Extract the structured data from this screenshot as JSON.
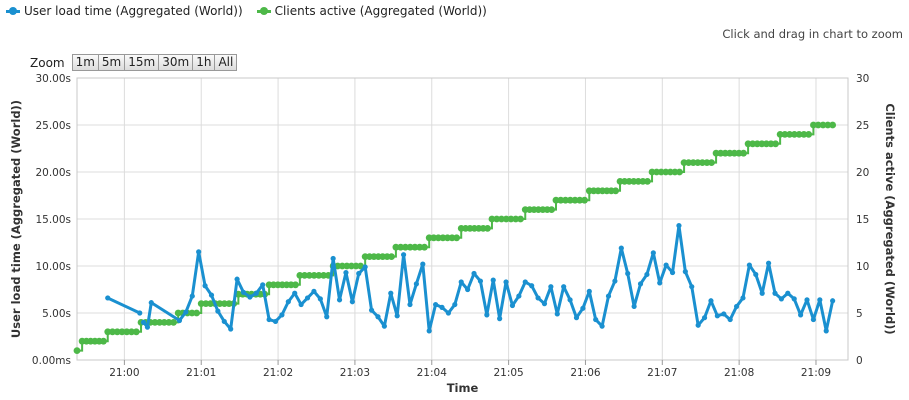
{
  "legend": {
    "items": [
      {
        "label": "User load time (Aggregated (World))",
        "color": "#1a90d0"
      },
      {
        "label": "Clients active (Aggregated (World))",
        "color": "#4db848"
      }
    ]
  },
  "zoom_hint": "Click and drag in chart to zoom",
  "zoom": {
    "label": "Zoom",
    "buttons": [
      "1m",
      "5m",
      "15m",
      "30m",
      "1h",
      "All"
    ]
  },
  "chart_data": {
    "type": "line",
    "xlabel": "Time",
    "ylabel_left": "User load time (Aggregated (World))",
    "ylabel_right": "Clients active (Aggregated (World))",
    "x_range": [
      "20:59:23",
      "21:09:25"
    ],
    "x_ticks": [
      "21:00",
      "21:01",
      "21:02",
      "21:03",
      "21:04",
      "21:05",
      "21:06",
      "21:07",
      "21:08",
      "21:09"
    ],
    "y_left_ticks": [
      "0.00ms",
      "5.00s",
      "10.00s",
      "15.00s",
      "20.00s",
      "25.00s",
      "30.00s"
    ],
    "y_left_range": [
      0,
      30
    ],
    "y_right_ticks": [
      "0",
      "5",
      "10",
      "15",
      "20",
      "25",
      "30"
    ],
    "y_right_range": [
      0,
      30
    ],
    "grid": true,
    "series": [
      {
        "name": "User load time (Aggregated (World))",
        "axis": "left",
        "color": "#1a90d0",
        "segments": [
          [
            [
              "20:59:47",
              6.6
            ],
            [
              "21:00:12",
              5.0
            ]
          ],
          [
            [
              "21:00:15",
              4.0
            ],
            [
              "21:00:18",
              3.5
            ],
            [
              "21:00:21",
              6.1
            ],
            [
              "21:00:43",
              4.2
            ],
            [
              "21:00:48",
              5.1
            ],
            [
              "21:00:53",
              6.8
            ],
            [
              "21:00:58",
              11.5
            ],
            [
              "21:01:03",
              7.9
            ],
            [
              "21:01:08",
              6.9
            ],
            [
              "21:01:13",
              5.2
            ],
            [
              "21:01:18",
              4.1
            ],
            [
              "21:01:23",
              3.3
            ],
            [
              "21:01:28",
              8.6
            ],
            [
              "21:01:33",
              7.2
            ],
            [
              "21:01:38",
              6.7
            ],
            [
              "21:01:43",
              7.1
            ],
            [
              "21:01:48",
              8.0
            ],
            [
              "21:01:53",
              4.3
            ],
            [
              "21:01:58",
              4.1
            ],
            [
              "21:02:03",
              4.8
            ],
            [
              "21:02:08",
              6.2
            ],
            [
              "21:02:13",
              7.1
            ],
            [
              "21:02:18",
              5.9
            ],
            [
              "21:02:23",
              6.6
            ],
            [
              "21:02:28",
              7.3
            ],
            [
              "21:02:33",
              6.5
            ],
            [
              "21:02:38",
              4.6
            ],
            [
              "21:02:43",
              10.8
            ],
            [
              "21:02:48",
              6.4
            ],
            [
              "21:02:53",
              9.3
            ],
            [
              "21:02:58",
              6.2
            ],
            [
              "21:03:03",
              9.2
            ],
            [
              "21:03:08",
              9.9
            ],
            [
              "21:03:13",
              5.3
            ],
            [
              "21:03:18",
              4.6
            ],
            [
              "21:03:23",
              3.6
            ],
            [
              "21:03:28",
              7.1
            ],
            [
              "21:03:33",
              4.7
            ],
            [
              "21:03:38",
              11.2
            ],
            [
              "21:03:43",
              5.9
            ],
            [
              "21:03:48",
              8.1
            ],
            [
              "21:03:53",
              10.2
            ],
            [
              "21:03:58",
              3.1
            ],
            [
              "21:04:03",
              5.9
            ],
            [
              "21:04:08",
              5.6
            ],
            [
              "21:04:13",
              5.0
            ],
            [
              "21:04:18",
              5.9
            ],
            [
              "21:04:23",
              8.3
            ],
            [
              "21:04:28",
              7.5
            ],
            [
              "21:04:33",
              9.2
            ],
            [
              "21:04:38",
              8.4
            ],
            [
              "21:04:43",
              4.8
            ],
            [
              "21:04:48",
              8.5
            ],
            [
              "21:04:53",
              4.4
            ],
            [
              "21:04:58",
              8.3
            ],
            [
              "21:05:03",
              5.8
            ],
            [
              "21:05:08",
              6.8
            ],
            [
              "21:05:13",
              8.3
            ],
            [
              "21:05:18",
              7.9
            ],
            [
              "21:05:23",
              6.6
            ],
            [
              "21:05:28",
              6.0
            ],
            [
              "21:05:33",
              7.8
            ],
            [
              "21:05:38",
              4.9
            ],
            [
              "21:05:43",
              7.8
            ],
            [
              "21:05:48",
              6.4
            ],
            [
              "21:05:53",
              4.5
            ],
            [
              "21:05:58",
              5.5
            ],
            [
              "21:06:03",
              7.3
            ],
            [
              "21:06:08",
              4.3
            ],
            [
              "21:06:13",
              3.6
            ],
            [
              "21:06:18",
              6.8
            ],
            [
              "21:06:23",
              8.4
            ],
            [
              "21:06:28",
              11.9
            ],
            [
              "21:06:33",
              9.2
            ],
            [
              "21:06:38",
              5.7
            ],
            [
              "21:06:43",
              8.1
            ],
            [
              "21:06:48",
              9.1
            ],
            [
              "21:06:53",
              11.4
            ],
            [
              "21:06:58",
              8.2
            ],
            [
              "21:07:03",
              10.1
            ],
            [
              "21:07:08",
              9.3
            ],
            [
              "21:07:13",
              14.3
            ],
            [
              "21:07:18",
              9.4
            ],
            [
              "21:07:23",
              7.8
            ],
            [
              "21:07:28",
              3.7
            ],
            [
              "21:07:33",
              4.5
            ],
            [
              "21:07:38",
              6.3
            ],
            [
              "21:07:43",
              4.7
            ],
            [
              "21:07:48",
              4.9
            ],
            [
              "21:07:53",
              4.3
            ],
            [
              "21:07:58",
              5.7
            ],
            [
              "21:08:03",
              6.6
            ],
            [
              "21:08:08",
              10.1
            ],
            [
              "21:08:13",
              9.1
            ],
            [
              "21:08:18",
              7.1
            ],
            [
              "21:08:23",
              10.3
            ],
            [
              "21:08:28",
              7.1
            ],
            [
              "21:08:33",
              6.5
            ],
            [
              "21:08:38",
              7.1
            ],
            [
              "21:08:43",
              6.5
            ],
            [
              "21:08:48",
              4.8
            ],
            [
              "21:08:53",
              6.4
            ],
            [
              "21:08:58",
              4.3
            ],
            [
              "21:09:03",
              6.4
            ],
            [
              "21:09:08",
              3.1
            ],
            [
              "21:09:13",
              6.3
            ]
          ]
        ]
      },
      {
        "name": "Clients active (Aggregated (World))",
        "axis": "right",
        "color": "#4db848",
        "steps": [
          [
            "20:59:23",
            1
          ],
          [
            "20:59:27",
            2
          ],
          [
            "20:59:47",
            3
          ],
          [
            "21:00:13",
            4
          ],
          [
            "21:00:42",
            5
          ],
          [
            "21:01:00",
            6
          ],
          [
            "21:01:29",
            7
          ],
          [
            "21:01:53",
            8
          ],
          [
            "21:02:17",
            9
          ],
          [
            "21:02:43",
            10
          ],
          [
            "21:03:08",
            11
          ],
          [
            "21:03:32",
            12
          ],
          [
            "21:03:58",
            13
          ],
          [
            "21:04:23",
            14
          ],
          [
            "21:04:47",
            15
          ],
          [
            "21:05:13",
            16
          ],
          [
            "21:05:37",
            17
          ],
          [
            "21:06:03",
            18
          ],
          [
            "21:06:27",
            19
          ],
          [
            "21:06:52",
            20
          ],
          [
            "21:07:17",
            21
          ],
          [
            "21:07:42",
            22
          ],
          [
            "21:08:07",
            23
          ],
          [
            "21:08:32",
            24
          ],
          [
            "21:08:58",
            25
          ],
          [
            "21:09:13",
            25
          ]
        ]
      }
    ]
  }
}
